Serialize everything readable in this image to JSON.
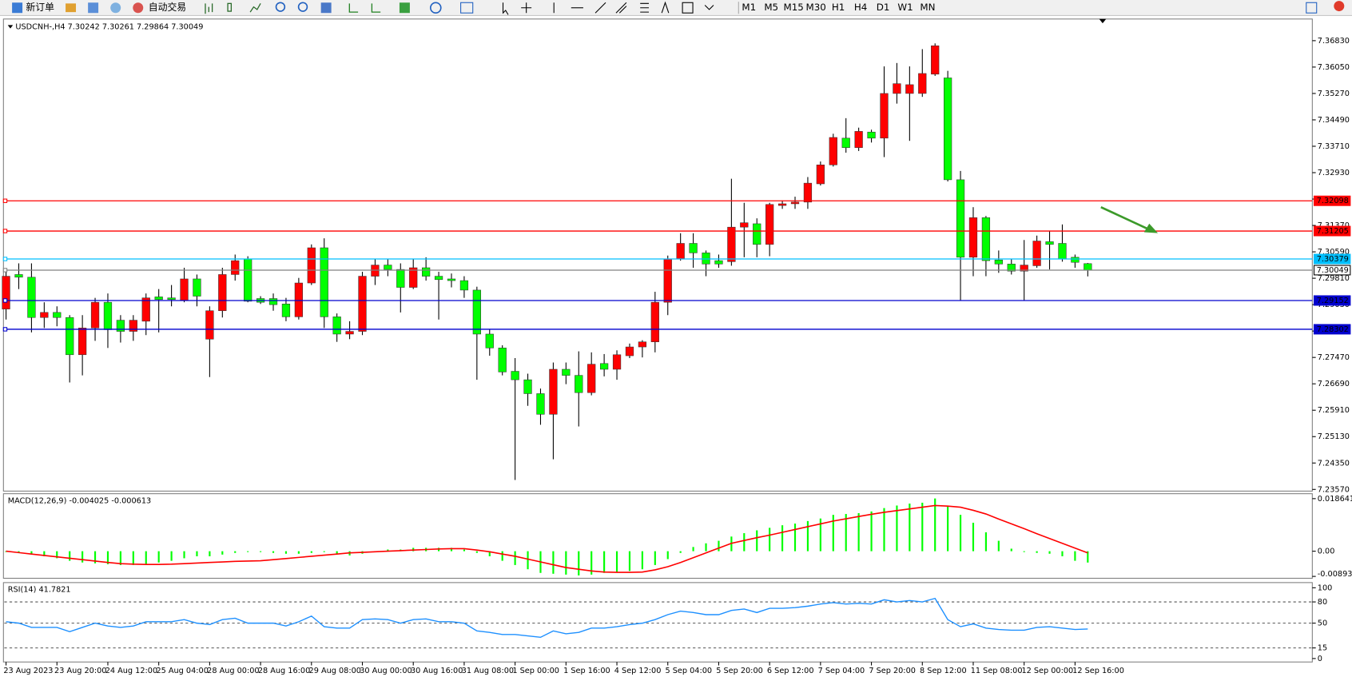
{
  "toolbar": {
    "new_order": "新订单",
    "auto_trading": "自动交易",
    "timeframes": [
      "M1",
      "M5",
      "M15",
      "M30",
      "H1",
      "H4",
      "D1",
      "W1",
      "MN"
    ]
  },
  "chart_data": [
    {
      "type": "candlestick",
      "title": "USDCNH-,H4  7.30242 7.30261 7.29864 7.30049",
      "categories": [
        "23 Aug 2023",
        null,
        null,
        null,
        "23 Aug 20:00",
        null,
        null,
        null,
        "24 Aug 12:00",
        null,
        null,
        null,
        "25 Aug 04:00",
        null,
        null,
        null,
        "28 Aug 00:00",
        null,
        null,
        null,
        "28 Aug 16:00",
        null,
        null,
        null,
        "29 Aug 08:00",
        null,
        null,
        null,
        "30 Aug 00:00",
        null,
        null,
        null,
        "30 Aug 16:00",
        null,
        null,
        null,
        "31 Aug 08:00",
        null,
        null,
        null,
        "1 Sep 00:00",
        null,
        null,
        null,
        "1 Sep 16:00",
        null,
        null,
        null,
        "4 Sep 12:00",
        null,
        null,
        null,
        "5 Sep 04:00",
        null,
        null,
        null,
        "5 Sep 20:00",
        null,
        null,
        null,
        "6 Sep 12:00",
        null,
        null,
        null,
        "7 Sep 04:00",
        null,
        null,
        null,
        "7 Sep 20:00",
        null,
        null,
        null,
        "8 Sep 12:00",
        null,
        null,
        null,
        "11 Sep 08:00",
        null,
        null,
        null,
        "12 Sep 00:00",
        null,
        null,
        null,
        "12 Sep 16:00",
        null
      ],
      "open": [
        7.289,
        7.2992,
        7.2984,
        7.2865,
        7.288,
        7.2865,
        7.2755,
        7.2834,
        7.291,
        7.2857,
        7.2824,
        7.2854,
        7.2926,
        7.2923,
        7.2916,
        7.2979,
        7.2801,
        7.2885,
        7.2992,
        7.3038,
        7.2921,
        7.2921,
        7.2905,
        7.2867,
        7.2967,
        7.3071,
        7.2867,
        7.2816,
        7.2824,
        7.2987,
        7.302,
        7.3007,
        7.2954,
        7.3012,
        7.2987,
        7.2979,
        7.2974,
        7.2946,
        7.2816,
        7.2775,
        7.2706,
        7.2681,
        7.264,
        7.2579,
        7.2712,
        7.2694,
        7.2643,
        7.2729,
        7.2712,
        7.2752,
        7.2778,
        7.2793,
        7.291,
        7.3038,
        7.3084,
        7.3056,
        7.3033,
        7.303,
        7.3132,
        7.3142,
        7.3081,
        7.3196,
        7.3201,
        7.3206,
        7.326,
        7.3316,
        7.3395,
        7.3367,
        7.3413,
        7.3395,
        7.3527,
        7.3527,
        7.3527,
        7.3584,
        7.3573,
        7.3272,
        7.3043,
        7.316,
        7.3035,
        7.3023,
        7.3002,
        7.3018,
        7.3089,
        7.3084,
        7.3043,
        7.30242
      ],
      "high": [
        7.3,
        7.3025,
        7.3025,
        7.291,
        7.2898,
        7.2872,
        7.2872,
        7.2923,
        7.2936,
        7.2872,
        7.2872,
        7.2936,
        7.2949,
        7.2961,
        7.3012,
        7.2992,
        7.2898,
        7.3012,
        7.3051,
        7.3046,
        7.2928,
        7.2936,
        7.2923,
        7.2982,
        7.3081,
        7.3099,
        7.2877,
        7.2854,
        7.3,
        7.3038,
        7.3038,
        7.3025,
        7.3038,
        7.3043,
        7.3,
        7.2995,
        7.2987,
        7.2956,
        7.2829,
        7.2783,
        7.2745,
        7.2699,
        7.2655,
        7.2732,
        7.2732,
        7.2765,
        7.2762,
        7.2757,
        7.2768,
        7.2788,
        7.2798,
        7.2941,
        7.3048,
        7.3114,
        7.3114,
        7.3063,
        7.3051,
        7.3275,
        7.3204,
        7.3158,
        7.3204,
        7.3211,
        7.3222,
        7.328,
        7.3326,
        7.3408,
        7.3454,
        7.3426,
        7.342,
        7.3607,
        7.3617,
        7.3607,
        7.3658,
        7.3675,
        7.3594,
        7.3298,
        7.3191,
        7.3165,
        7.3063,
        7.3038,
        7.3094,
        7.3107,
        7.312,
        7.314,
        7.3051,
        7.30261
      ],
      "low": [
        7.2859,
        7.2949,
        7.2821,
        7.2834,
        7.2839,
        7.2673,
        7.2694,
        7.2796,
        7.2775,
        7.2791,
        7.2796,
        7.2813,
        7.2821,
        7.2898,
        7.291,
        7.2898,
        7.2689,
        7.2865,
        7.2974,
        7.291,
        7.2905,
        7.2885,
        7.2854,
        7.2859,
        7.2961,
        7.2834,
        7.2793,
        7.2801,
        7.2813,
        7.2961,
        7.2987,
        7.288,
        7.2949,
        7.2974,
        7.2859,
        7.2954,
        7.2923,
        7.2681,
        7.2752,
        7.2694,
        7.2385,
        7.2604,
        7.2548,
        7.2446,
        7.2668,
        7.2543,
        7.2635,
        7.2691,
        7.2681,
        7.2745,
        7.2747,
        7.2762,
        7.2872,
        7.3033,
        7.3012,
        7.2987,
        7.3012,
        7.3018,
        7.3043,
        7.3043,
        7.3046,
        7.3186,
        7.3186,
        7.3186,
        7.3255,
        7.3311,
        7.3352,
        7.3357,
        7.3382,
        7.3339,
        7.3497,
        7.3387,
        7.3517,
        7.3579,
        7.3267,
        7.2916,
        7.2987,
        7.2987,
        7.2997,
        7.2992,
        7.2916,
        7.3012,
        7.3007,
        7.303,
        7.3012,
        7.29864
      ],
      "close": [
        7.2987,
        7.2984,
        7.2865,
        7.288,
        7.2865,
        7.2755,
        7.2834,
        7.291,
        7.2829,
        7.2824,
        7.2857,
        7.2923,
        7.2918,
        7.2918,
        7.2979,
        7.2928,
        7.2885,
        7.2992,
        7.3033,
        7.2913,
        7.291,
        7.2903,
        7.2867,
        7.2967,
        7.3071,
        7.2867,
        7.2816,
        7.2824,
        7.2987,
        7.302,
        7.3007,
        7.2954,
        7.3012,
        7.2987,
        7.2977,
        7.2974,
        7.2946,
        7.2816,
        7.2775,
        7.2704,
        7.2681,
        7.264,
        7.2579,
        7.2712,
        7.2694,
        7.2643,
        7.2727,
        7.2712,
        7.2755,
        7.2778,
        7.2793,
        7.291,
        7.3038,
        7.3084,
        7.3056,
        7.3023,
        7.3023,
        7.3132,
        7.3145,
        7.3081,
        7.3199,
        7.3201,
        7.3206,
        7.3262,
        7.3316,
        7.3397,
        7.3367,
        7.3415,
        7.3395,
        7.3527,
        7.3556,
        7.3553,
        7.3586,
        7.3668,
        7.3272,
        7.3043,
        7.316,
        7.3033,
        7.3023,
        7.3002,
        7.302,
        7.3091,
        7.3081,
        7.3038,
        7.3028,
        7.30049
      ],
      "up_color": "#ff0000",
      "down_color": "#00ff00",
      "ylim": [
        7.2352,
        7.3747
      ],
      "yticks": [
        {
          "value": 7.3683,
          "label": "7.36830"
        },
        {
          "value": 7.3605,
          "label": "7.36050"
        },
        {
          "value": 7.3527,
          "label": "7.35270"
        },
        {
          "value": 7.3449,
          "label": "7.34490"
        },
        {
          "value": 7.3371,
          "label": "7.33710"
        },
        {
          "value": 7.3293,
          "label": "7.32930"
        },
        {
          "value": 7.3215,
          "label": "7.32150"
        },
        {
          "value": 7.3137,
          "label": "7.31370"
        },
        {
          "value": 7.3059,
          "label": "7.30590"
        },
        {
          "value": 7.2981,
          "label": "7.29810"
        },
        {
          "value": 7.2903,
          "label": "7.29030"
        },
        {
          "value": 7.2825,
          "label": "7.28250"
        },
        {
          "value": 7.2747,
          "label": "7.27470"
        },
        {
          "value": 7.2669,
          "label": "7.26690"
        },
        {
          "value": 7.2591,
          "label": "7.25910"
        },
        {
          "value": 7.2513,
          "label": "7.25130"
        },
        {
          "value": 7.2435,
          "label": "7.24350"
        },
        {
          "value": 7.2357,
          "label": "7.23570"
        }
      ],
      "levels": [
        {
          "value": 7.32098,
          "color": "#ff0000"
        },
        {
          "value": 7.31205,
          "color": "#ff0000"
        },
        {
          "value": 7.30379,
          "color": "#00bfff"
        },
        {
          "value": 7.30049,
          "color": "#808080"
        },
        {
          "value": 7.29152,
          "color": "#0000cd"
        },
        {
          "value": 7.28302,
          "color": "#0000cd"
        }
      ]
    },
    {
      "type": "macd",
      "title": "MACD(12,26,9) -0.004025 -0.000613",
      "histogram": [
        -0.0003,
        -0.0006,
        -0.0012,
        -0.0018,
        -0.0025,
        -0.0034,
        -0.004,
        -0.0043,
        -0.0046,
        -0.0049,
        -0.0049,
        -0.0046,
        -0.004,
        -0.0034,
        -0.0025,
        -0.0018,
        -0.0018,
        -0.0012,
        -0.0006,
        -0.0003,
        -0.0003,
        -0.0006,
        -0.0009,
        -0.0009,
        -0.0006,
        -0.0003,
        -0.0009,
        -0.0015,
        -0.0009,
        -0.0003,
        0.0006,
        0.0006,
        0.0012,
        0.0012,
        0.0012,
        0.0012,
        0.0006,
        -0.0006,
        -0.0018,
        -0.0034,
        -0.0049,
        -0.0064,
        -0.0077,
        -0.008,
        -0.0083,
        -0.0086,
        -0.0083,
        -0.0077,
        -0.0074,
        -0.007,
        -0.0064,
        -0.0049,
        -0.0028,
        -0.0006,
        0.0015,
        0.0028,
        0.0037,
        0.0052,
        0.0064,
        0.0074,
        0.0083,
        0.0092,
        0.0098,
        0.0107,
        0.0116,
        0.0129,
        0.0132,
        0.0135,
        0.0141,
        0.0153,
        0.0162,
        0.0169,
        0.0172,
        0.0187,
        0.0159,
        0.0129,
        0.0101,
        0.0067,
        0.0037,
        0.0009,
        -0.0003,
        -0.0006,
        -0.0009,
        -0.0018,
        -0.0034,
        -0.004025
      ],
      "signal": [
        0.0,
        -0.0005,
        -0.001,
        -0.0015,
        -0.002,
        -0.0025,
        -0.003,
        -0.0035,
        -0.004,
        -0.0044,
        -0.0046,
        -0.0047,
        -0.0047,
        -0.0046,
        -0.0044,
        -0.0042,
        -0.004,
        -0.0038,
        -0.0036,
        -0.0035,
        -0.0034,
        -0.003,
        -0.0026,
        -0.0022,
        -0.0018,
        -0.0014,
        -0.001,
        -0.0006,
        -0.0004,
        -0.0002,
        0.0,
        0.0002,
        0.0004,
        0.0006,
        0.0008,
        0.0009,
        0.0009,
        0.0004,
        -0.0002,
        -0.001,
        -0.0018,
        -0.0028,
        -0.0038,
        -0.0048,
        -0.0058,
        -0.0064,
        -0.007,
        -0.0074,
        -0.0075,
        -0.0075,
        -0.0074,
        -0.0066,
        -0.0055,
        -0.004,
        -0.0023,
        -0.0006,
        0.0011,
        0.0028,
        0.0038,
        0.0048,
        0.0057,
        0.0067,
        0.0077,
        0.0087,
        0.0097,
        0.0107,
        0.0115,
        0.0123,
        0.0131,
        0.0138,
        0.0144,
        0.015,
        0.0156,
        0.0162,
        0.016,
        0.0156,
        0.0145,
        0.0132,
        0.0114,
        0.0097,
        0.008,
        0.0062,
        0.0045,
        0.0028,
        0.0011,
        -0.000613
      ],
      "histogram_color": "#00ff00",
      "signal_color": "#ff0000",
      "ylim": [
        -0.0096,
        0.0204
      ],
      "yticks": [
        0.018641,
        {
          "value": 0,
          "label": "0.00"
        },
        -0.008934
      ]
    },
    {
      "type": "line",
      "title": "RSI(14) 41.7821",
      "values": [
        52,
        50,
        44,
        44,
        44,
        38,
        44,
        50,
        46,
        44,
        46,
        52,
        52,
        52,
        55,
        50,
        48,
        55,
        57,
        50,
        50,
        50,
        46,
        52,
        60,
        45,
        43,
        43,
        55,
        56,
        55,
        50,
        55,
        56,
        52,
        52,
        50,
        39,
        37,
        34,
        34,
        32,
        30,
        39,
        35,
        37,
        43,
        43,
        45,
        48,
        50,
        55,
        62,
        67,
        65,
        62,
        62,
        68,
        70,
        65,
        71,
        71,
        72,
        74,
        77,
        79,
        77,
        78,
        77,
        83,
        80,
        82,
        80,
        85,
        55,
        45,
        49,
        43,
        41,
        40,
        40,
        44,
        45,
        43,
        41,
        41.7821
      ],
      "color": "#1e90ff",
      "ylim": [
        0,
        100
      ],
      "yticks": [
        100,
        80,
        50,
        15,
        0
      ],
      "levels": [
        80,
        50,
        15
      ]
    }
  ]
}
